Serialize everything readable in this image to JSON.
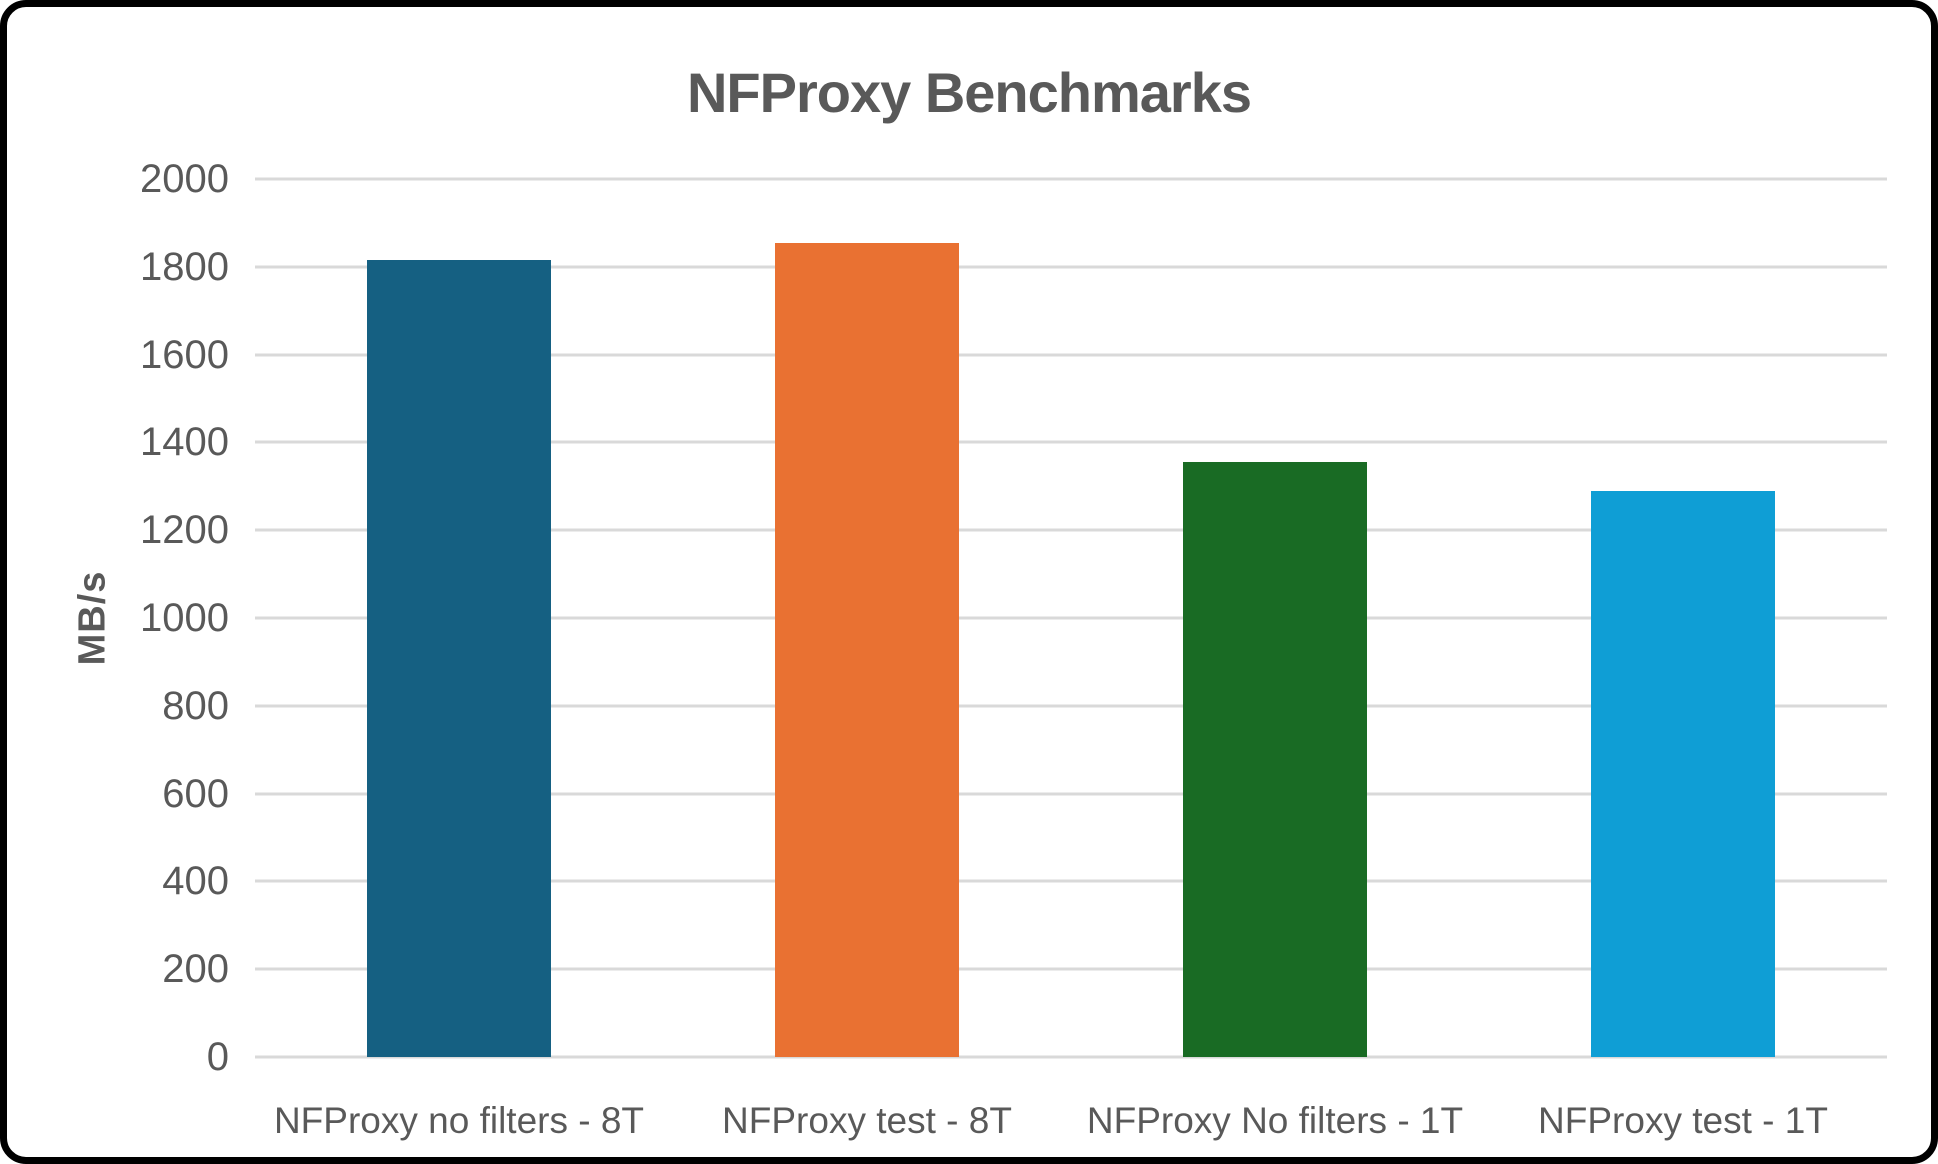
{
  "frame": {
    "background": "#ffffff",
    "border_color": "#000000"
  },
  "chart_data": {
    "type": "bar",
    "title": "NFProxy Benchmarks",
    "ylabel": "MB/s",
    "xlabel": "",
    "categories": [
      "NFProxy no filters - 8T",
      "NFProxy test - 8T",
      "NFProxy No filters  - 1T",
      "NFProxy test - 1T"
    ],
    "values": [
      1815,
      1855,
      1355,
      1290
    ],
    "bar_colors": [
      "#156082",
      "#E97132",
      "#196B24",
      "#0F9ED5"
    ],
    "ylim": [
      0,
      2000
    ],
    "ytick_step": 200,
    "ytick_labels": [
      "0",
      "200",
      "400",
      "600",
      "800",
      "1000",
      "1200",
      "1400",
      "1600",
      "1800",
      "2000"
    ],
    "grid": true,
    "legend": false,
    "text_color": "#595959",
    "gridline_color": "#D9D9D9"
  }
}
